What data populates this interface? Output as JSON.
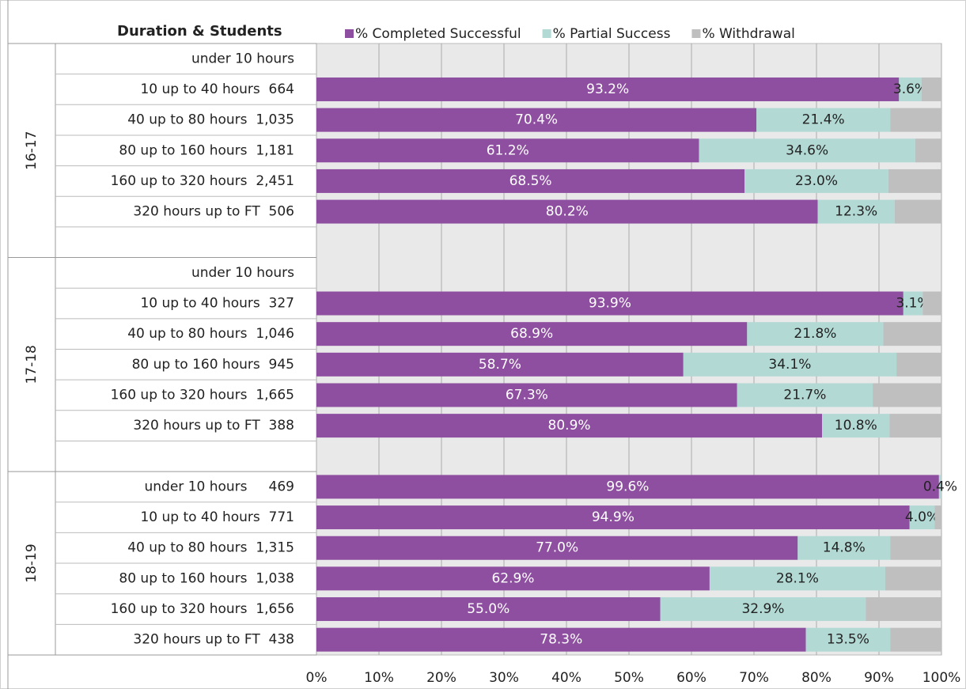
{
  "chart_data": {
    "type": "stacked_bar_horizontal",
    "title": "Duration & Students",
    "series": [
      {
        "name": "% Completed Successful",
        "color": "#8e4fa0"
      },
      {
        "name": "% Partial Success",
        "color": "#b3d9d5"
      },
      {
        "name": "% Withdrawal",
        "color": "#bfbfbf"
      }
    ],
    "groups": [
      {
        "name": "16-17",
        "categories": [
          "under 10 hours",
          "10 up to 40 hours  664",
          "40 up to 80 hours  1,035",
          "80 up to 160 hours  1,181",
          "160 up to 320 hours  2,451",
          "320 hours up to FT  506",
          null
        ],
        "series": [
          {
            "values": [
              null,
              93.2,
              70.4,
              61.2,
              68.5,
              80.2,
              null
            ],
            "value_labels": [
              null,
              "93.2%",
              "70.4%",
              "61.2%",
              "68.5%",
              "80.2%",
              null
            ]
          },
          {
            "values": [
              null,
              3.6,
              21.4,
              34.6,
              23.0,
              12.3,
              null
            ],
            "value_labels": [
              null,
              "3.6%",
              "21.4%",
              "34.6%",
              "23.0%",
              "12.3%",
              null
            ]
          },
          {
            "values": [
              null,
              3.2,
              8.2,
              4.2,
              8.5,
              7.5,
              null
            ]
          }
        ]
      },
      {
        "name": "17-18",
        "categories": [
          "under 10 hours",
          "10 up to 40 hours  327",
          "40 up to 80 hours  1,046",
          "80 up to 160 hours  945",
          "160 up to 320 hours  1,665",
          "320 hours up to FT  388",
          null
        ],
        "series": [
          {
            "values": [
              null,
              93.9,
              68.9,
              58.7,
              67.3,
              80.9,
              null
            ],
            "value_labels": [
              null,
              "93.9%",
              "68.9%",
              "58.7%",
              "67.3%",
              "80.9%",
              null
            ]
          },
          {
            "values": [
              null,
              3.1,
              21.8,
              34.1,
              21.7,
              10.8,
              null
            ],
            "value_labels": [
              null,
              "3.1%",
              "21.8%",
              "34.1%",
              "21.7%",
              "10.8%",
              null
            ]
          },
          {
            "values": [
              null,
              3.0,
              9.3,
              7.2,
              11.0,
              8.3,
              null
            ]
          }
        ]
      },
      {
        "name": "18-19",
        "categories": [
          "under 10 hours     469",
          "10 up to 40 hours  771",
          "40 up to 80 hours  1,315",
          "80 up to 160 hours  1,038",
          "160 up to 320 hours  1,656",
          "320 hours up to FT  438"
        ],
        "series": [
          {
            "values": [
              99.6,
              94.9,
              77.0,
              62.9,
              55.0,
              78.3
            ],
            "value_labels": [
              "99.6%",
              "94.9%",
              "77.0%",
              "62.9%",
              "55.0%",
              "78.3%"
            ]
          },
          {
            "values": [
              0.4,
              4.0,
              14.8,
              28.1,
              32.9,
              13.5
            ],
            "value_labels": [
              "0.4%",
              "4.0%",
              "14.8%",
              "28.1%",
              "32.9%",
              "13.5%"
            ]
          },
          {
            "values": [
              0,
              1.1,
              8.2,
              9.0,
              12.1,
              8.2
            ]
          }
        ]
      }
    ],
    "xlim": [
      0,
      100
    ],
    "xticks": [
      {
        "value": 0,
        "label": "0%"
      },
      {
        "value": 10,
        "label": "10%"
      },
      {
        "value": 20,
        "label": "20%"
      },
      {
        "value": 30,
        "label": "30%"
      },
      {
        "value": 40,
        "label": "40%"
      },
      {
        "value": 50,
        "label": "50%"
      },
      {
        "value": 60,
        "label": "60%"
      },
      {
        "value": 70,
        "label": "70%"
      },
      {
        "value": 80,
        "label": "80%"
      },
      {
        "value": 90,
        "label": "90%"
      },
      {
        "value": 100,
        "label": "100%"
      }
    ],
    "grid": true
  }
}
